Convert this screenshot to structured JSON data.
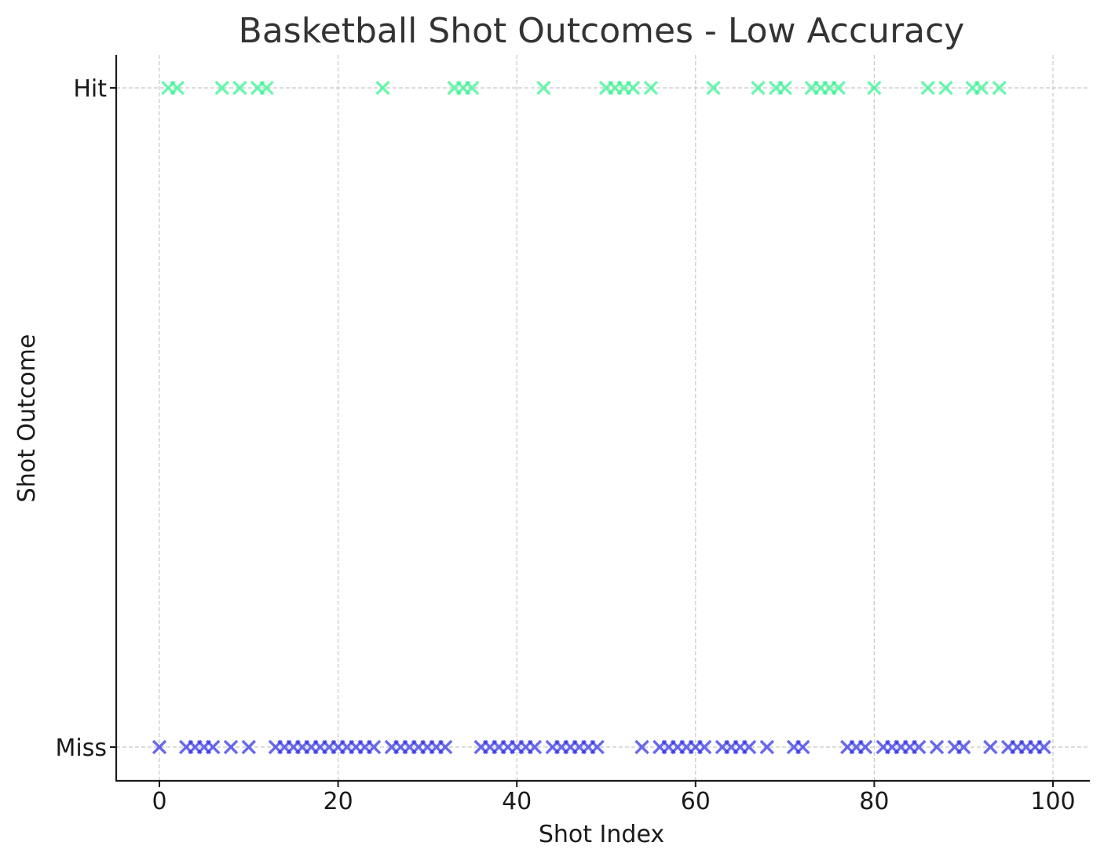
{
  "chart_data": {
    "type": "scatter",
    "title": "Basketball Shot Outcomes - Low Accuracy",
    "xlabel": "Shot Index",
    "ylabel": "Shot Outcome",
    "xlim": [
      -5,
      104
    ],
    "xticks": [
      0,
      20,
      40,
      60,
      80,
      100
    ],
    "yticks": [
      {
        "value": 0,
        "label": "Miss"
      },
      {
        "value": 1,
        "label": "Hit"
      }
    ],
    "grid": true,
    "marker": "x",
    "series": [
      {
        "outcome": 1,
        "color": "#2ef58c",
        "x": [
          1,
          2,
          7,
          9,
          11,
          12,
          25,
          33,
          34,
          35,
          43,
          50,
          51,
          52,
          53,
          55,
          62,
          67,
          69,
          70,
          73,
          74,
          75,
          76,
          80,
          86,
          88,
          91,
          92,
          94
        ]
      },
      {
        "outcome": 0,
        "color": "#2b2be8",
        "x": [
          0,
          3,
          4,
          5,
          6,
          8,
          10,
          13,
          14,
          15,
          16,
          17,
          18,
          19,
          20,
          21,
          22,
          23,
          24,
          26,
          27,
          28,
          29,
          30,
          31,
          32,
          36,
          37,
          38,
          39,
          40,
          41,
          42,
          44,
          45,
          46,
          47,
          48,
          49,
          54,
          56,
          57,
          58,
          59,
          60,
          61,
          63,
          64,
          65,
          66,
          68,
          71,
          72,
          77,
          78,
          79,
          81,
          82,
          83,
          84,
          85,
          87,
          89,
          90,
          93,
          95,
          96,
          97,
          98,
          99
        ]
      }
    ]
  }
}
